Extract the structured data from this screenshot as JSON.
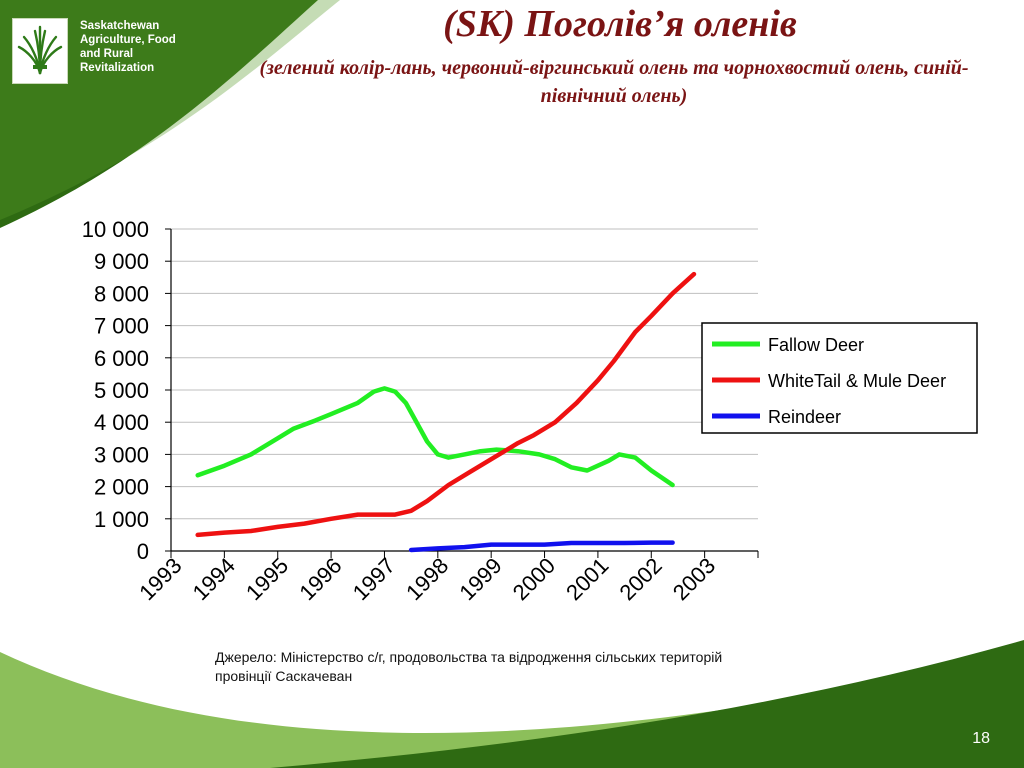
{
  "branding": {
    "org_lines": [
      "Saskatchewan",
      "Agriculture, Food",
      "and Rural",
      "Revitalization"
    ],
    "logo_icon": "wheat-sheaf-icon"
  },
  "slide": {
    "title": "(SK) Поголів’я оленів",
    "subtitle": "(зелений колір-лань, червоний-віргинський олень та чорнохвостий олень, синій-північний олень)",
    "source": "Джерело: Міністерство с/г, продовольства та відродження сільських територій провінції Саскачеван",
    "page_number": "18"
  },
  "colors": {
    "dark_green": "#2e6a12",
    "light_green": "#8cbf5a",
    "title": "#7a1414",
    "fallow": "#22ee22",
    "whitetail": "#ee1111",
    "reindeer": "#1111ee"
  },
  "chart_data": {
    "type": "line",
    "categories": [
      "1993",
      "1994",
      "1995",
      "1996",
      "1997",
      "1998",
      "1999",
      "2000",
      "2001",
      "2002",
      "2003"
    ],
    "ylim": [
      0,
      10000
    ],
    "yticks": [
      0,
      1000,
      2000,
      3000,
      4000,
      5000,
      6000,
      7000,
      8000,
      9000,
      10000
    ],
    "ytick_labels": [
      "0",
      "1 000",
      "2 000",
      "3 000",
      "4 000",
      "5 000",
      "6 000",
      "7 000",
      "8 000",
      "9 000",
      "10 000"
    ],
    "grid": true,
    "legend_position": "right",
    "series": [
      {
        "name": "Fallow  Deer",
        "color": "#22ee22",
        "points": [
          [
            1993.5,
            2350
          ],
          [
            1994.0,
            2650
          ],
          [
            1994.5,
            3000
          ],
          [
            1995.0,
            3500
          ],
          [
            1995.3,
            3800
          ],
          [
            1995.7,
            4050
          ],
          [
            1996.0,
            4250
          ],
          [
            1996.5,
            4600
          ],
          [
            1996.8,
            4950
          ],
          [
            1997.0,
            5050
          ],
          [
            1997.2,
            4950
          ],
          [
            1997.4,
            4600
          ],
          [
            1997.6,
            4000
          ],
          [
            1997.8,
            3400
          ],
          [
            1998.0,
            3000
          ],
          [
            1998.2,
            2900
          ],
          [
            1998.5,
            3000
          ],
          [
            1998.8,
            3100
          ],
          [
            1999.1,
            3150
          ],
          [
            1999.5,
            3100
          ],
          [
            1999.9,
            3000
          ],
          [
            2000.2,
            2850
          ],
          [
            2000.5,
            2600
          ],
          [
            2000.8,
            2500
          ],
          [
            2001.2,
            2800
          ],
          [
            2001.4,
            3000
          ],
          [
            2001.7,
            2900
          ],
          [
            2002.0,
            2500
          ],
          [
            2002.4,
            2050
          ]
        ]
      },
      {
        "name": "WhiteTail & Mule Deer",
        "color": "#ee1111",
        "points": [
          [
            1993.5,
            500
          ],
          [
            1994.0,
            570
          ],
          [
            1994.5,
            620
          ],
          [
            1995.0,
            750
          ],
          [
            1995.5,
            850
          ],
          [
            1996.0,
            1000
          ],
          [
            1996.5,
            1130
          ],
          [
            1997.0,
            1130
          ],
          [
            1997.2,
            1130
          ],
          [
            1997.5,
            1250
          ],
          [
            1997.8,
            1550
          ],
          [
            1998.2,
            2050
          ],
          [
            1998.6,
            2450
          ],
          [
            1999.0,
            2850
          ],
          [
            1999.5,
            3350
          ],
          [
            1999.8,
            3600
          ],
          [
            2000.2,
            4000
          ],
          [
            2000.6,
            4600
          ],
          [
            2001.0,
            5300
          ],
          [
            2001.3,
            5900
          ],
          [
            2001.7,
            6800
          ],
          [
            2002.0,
            7300
          ],
          [
            2002.4,
            8000
          ],
          [
            2002.8,
            8600
          ]
        ]
      },
      {
        "name": "Reindeer",
        "color": "#1111ee",
        "points": [
          [
            1997.5,
            30
          ],
          [
            1998.0,
            80
          ],
          [
            1998.5,
            120
          ],
          [
            1999.0,
            200
          ],
          [
            1999.5,
            200
          ],
          [
            2000.0,
            200
          ],
          [
            2000.5,
            250
          ],
          [
            2001.0,
            250
          ],
          [
            2001.5,
            250
          ],
          [
            2002.0,
            260
          ],
          [
            2002.4,
            260
          ]
        ]
      }
    ]
  }
}
